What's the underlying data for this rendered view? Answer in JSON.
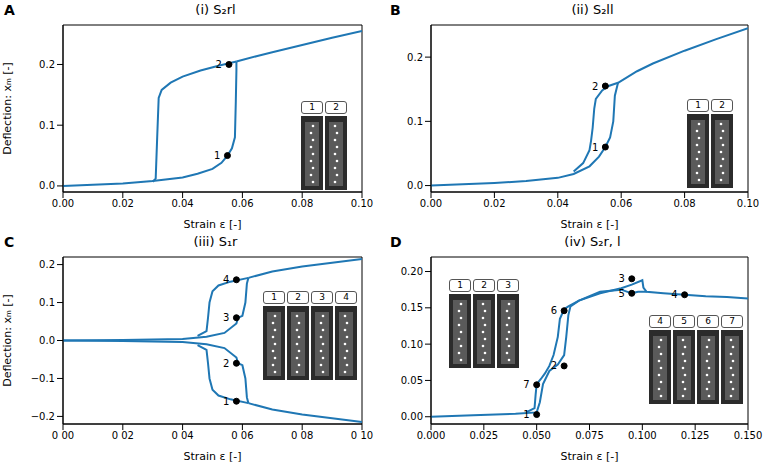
{
  "chart_data": [
    {
      "type": "line",
      "panel_label": "A",
      "title": "(i) S₂rl",
      "x_label": "Strain ε [-]",
      "y_label": "Deflection: xₘ [-]",
      "xlim": [
        0,
        0.1
      ],
      "xticks": [
        {
          "value": 0,
          "label": "0.00"
        },
        {
          "value": 0.02,
          "label": "0.02"
        },
        {
          "value": 0.04,
          "label": "0.04"
        },
        {
          "value": 0.06,
          "label": "0.06"
        },
        {
          "value": 0.08,
          "label": "0.08"
        },
        {
          "value": 0.1,
          "label": "0.10"
        }
      ],
      "ylim": [
        -0.01,
        0.265
      ],
      "yticks": [
        {
          "value": 0,
          "label": "0.0"
        },
        {
          "value": 0.1,
          "label": "0.1"
        },
        {
          "value": 0.2,
          "label": "0.2"
        }
      ],
      "series": [
        {
          "color": "#1f77b4",
          "x": [
            0,
            0.01,
            0.02,
            0.03,
            0.04,
            0.045,
            0.05,
            0.053,
            0.055,
            0.0565,
            0.0575,
            0.0578,
            0.058,
            0.058
          ],
          "values": [
            0,
            0.002,
            0.004,
            0.008,
            0.014,
            0.02,
            0.028,
            0.038,
            0.05,
            0.062,
            0.08,
            0.14,
            0.19,
            0.205
          ]
        },
        {
          "color": "#1f77b4",
          "x": [
            0.058,
            0.065,
            0.07,
            0.08,
            0.09,
            0.1
          ],
          "values": [
            0.205,
            0.214,
            0.22,
            0.232,
            0.244,
            0.255
          ]
        },
        {
          "color": "#1f77b4",
          "x": [
            0.058,
            0.052,
            0.046,
            0.04,
            0.036,
            0.033,
            0.032,
            0.0315,
            0.031,
            0.03
          ],
          "values": [
            0.205,
            0.198,
            0.19,
            0.18,
            0.17,
            0.158,
            0.145,
            0.08,
            0.012,
            0.007
          ]
        }
      ],
      "annotations": [
        {
          "x": 0.055,
          "y": 0.05,
          "label": "1"
        },
        {
          "x": 0.0555,
          "y": 0.2,
          "label": "2"
        }
      ],
      "inset_labels": [
        [
          "1",
          "2"
        ]
      ]
    },
    {
      "type": "line",
      "panel_label": "B",
      "title": "(ii) S₂ll",
      "x_label": "Strain ε [-]",
      "xlim": [
        0,
        0.1
      ],
      "xticks": [
        {
          "value": 0,
          "label": "0.00"
        },
        {
          "value": 0.02,
          "label": "0.02"
        },
        {
          "value": 0.04,
          "label": "0.04"
        },
        {
          "value": 0.06,
          "label": "0.06"
        },
        {
          "value": 0.08,
          "label": "0.08"
        },
        {
          "value": 0.1,
          "label": "0.10"
        }
      ],
      "ylim": [
        -0.01,
        0.25
      ],
      "yticks": [
        {
          "value": 0,
          "label": "0.0"
        },
        {
          "value": 0.1,
          "label": "0.1"
        },
        {
          "value": 0.2,
          "label": "0.2"
        }
      ],
      "series": [
        {
          "color": "#1f77b4",
          "x": [
            0,
            0.01,
            0.02,
            0.03,
            0.04,
            0.045,
            0.05,
            0.053,
            0.055,
            0.0565,
            0.0575,
            0.058,
            0.059
          ],
          "values": [
            0,
            0.002,
            0.004,
            0.007,
            0.012,
            0.018,
            0.03,
            0.045,
            0.06,
            0.075,
            0.1,
            0.14,
            0.16
          ]
        },
        {
          "color": "#1f77b4",
          "x": [
            0.059,
            0.065,
            0.07,
            0.08,
            0.09,
            0.1
          ],
          "values": [
            0.16,
            0.178,
            0.19,
            0.21,
            0.228,
            0.245
          ]
        },
        {
          "color": "#1f77b4",
          "x": [
            0.059,
            0.056,
            0.054,
            0.052,
            0.0515,
            0.051,
            0.0505,
            0.05,
            0.048,
            0.045
          ],
          "values": [
            0.16,
            0.155,
            0.148,
            0.135,
            0.12,
            0.09,
            0.07,
            0.055,
            0.035,
            0.022
          ]
        }
      ],
      "annotations": [
        {
          "x": 0.055,
          "y": 0.06,
          "label": "1"
        },
        {
          "x": 0.055,
          "y": 0.155,
          "label": "2"
        }
      ],
      "inset_labels": [
        [
          "1",
          "2"
        ]
      ]
    },
    {
      "type": "line",
      "panel_label": "C",
      "title": "(iii) S₁r",
      "x_label": "Strain ε [-]",
      "y_label": "Deflection: xₘ [-]",
      "xlim": [
        0,
        0.1
      ],
      "xticks": [
        {
          "value": 0,
          "label": "0 00"
        },
        {
          "value": 0.02,
          "label": "0 02"
        },
        {
          "value": 0.04,
          "label": "0 04"
        },
        {
          "value": 0.06,
          "label": "0 06"
        },
        {
          "value": 0.08,
          "label": "0 08"
        },
        {
          "value": 0.1,
          "label": "0 10"
        }
      ],
      "ylim": [
        -0.22,
        0.22
      ],
      "yticks": [
        {
          "value": -0.2,
          "label": "−0.2"
        },
        {
          "value": -0.1,
          "label": "−0.1"
        },
        {
          "value": 0,
          "label": "0.0"
        },
        {
          "value": 0.1,
          "label": "0.1"
        },
        {
          "value": 0.2,
          "label": "0.2"
        }
      ],
      "series": [
        {
          "color": "#1f77b4",
          "x": [
            0,
            0.02,
            0.04,
            0.048,
            0.054,
            0.058,
            0.0585,
            0.06,
            0.061,
            0.0615,
            0.062
          ],
          "values": [
            0,
            0.001,
            0.004,
            0.01,
            0.02,
            0.045,
            0.06,
            0.065,
            0.1,
            0.15,
            0.165
          ]
        },
        {
          "color": "#1f77b4",
          "x": [
            0.062,
            0.07,
            0.08,
            0.09,
            0.1
          ],
          "values": [
            0.165,
            0.182,
            0.195,
            0.205,
            0.215
          ]
        },
        {
          "color": "#1f77b4",
          "x": [
            0.062,
            0.056,
            0.052,
            0.05,
            0.049,
            0.0485,
            0.048,
            0.045
          ],
          "values": [
            0.165,
            0.155,
            0.145,
            0.13,
            0.1,
            0.06,
            0.025,
            0.012
          ]
        },
        {
          "color": "#1f77b4",
          "x": [
            0,
            0.02,
            0.04,
            0.048,
            0.054,
            0.058,
            0.0585,
            0.06,
            0.061,
            0.0615,
            0.062
          ],
          "values": [
            0,
            -0.001,
            -0.004,
            -0.01,
            -0.02,
            -0.045,
            -0.06,
            -0.065,
            -0.1,
            -0.15,
            -0.165
          ]
        },
        {
          "color": "#1f77b4",
          "x": [
            0.062,
            0.07,
            0.08,
            0.09,
            0.1
          ],
          "values": [
            -0.165,
            -0.182,
            -0.195,
            -0.205,
            -0.215
          ]
        },
        {
          "color": "#1f77b4",
          "x": [
            0.062,
            0.056,
            0.052,
            0.05,
            0.049,
            0.0485,
            0.048,
            0.045
          ],
          "values": [
            -0.165,
            -0.155,
            -0.145,
            -0.13,
            -0.1,
            -0.06,
            -0.025,
            -0.012
          ]
        }
      ],
      "annotations": [
        {
          "x": 0.058,
          "y": -0.16,
          "label": "1"
        },
        {
          "x": 0.058,
          "y": -0.06,
          "label": "2"
        },
        {
          "x": 0.058,
          "y": 0.06,
          "label": "3"
        },
        {
          "x": 0.058,
          "y": 0.16,
          "label": "4"
        }
      ],
      "inset_labels": [
        [
          "1",
          "2",
          "3",
          "4"
        ]
      ]
    },
    {
      "type": "line",
      "panel_label": "D",
      "title": "(iv) S₂r, l",
      "x_label": "Strain ε [-]",
      "xlim": [
        0,
        0.15
      ],
      "xticks": [
        {
          "value": 0,
          "label": "0.000"
        },
        {
          "value": 0.025,
          "label": "0.025"
        },
        {
          "value": 0.05,
          "label": "0.050"
        },
        {
          "value": 0.075,
          "label": "0.075"
        },
        {
          "value": 0.1,
          "label": "0.100"
        },
        {
          "value": 0.125,
          "label": "0.125"
        },
        {
          "value": 0.15,
          "label": "0.150"
        }
      ],
      "ylim": [
        -0.01,
        0.22
      ],
      "yticks": [
        {
          "value": 0,
          "label": "0.00"
        },
        {
          "value": 0.05,
          "label": "0.05"
        },
        {
          "value": 0.1,
          "label": "0.10"
        },
        {
          "value": 0.15,
          "label": "0.15"
        },
        {
          "value": 0.2,
          "label": "0.20"
        }
      ],
      "series": [
        {
          "color": "#1f77b4",
          "x": [
            0,
            0.02,
            0.04,
            0.05,
            0.0515,
            0.053,
            0.056,
            0.06,
            0.063,
            0.064,
            0.065,
            0.066,
            0.07,
            0.08,
            0.09,
            0.095,
            0.1,
            0.1005,
            0.102,
            0.11,
            0.12,
            0.13,
            0.14,
            0.15
          ],
          "values": [
            0,
            0.002,
            0.004,
            0.006,
            0.02,
            0.045,
            0.063,
            0.072,
            0.085,
            0.11,
            0.14,
            0.152,
            0.16,
            0.17,
            0.177,
            0.182,
            0.188,
            0.178,
            0.172,
            0.17,
            0.168,
            0.166,
            0.165,
            0.163
          ]
        },
        {
          "color": "#1f77b4",
          "x": [
            0.102,
            0.098,
            0.095,
            0.093,
            0.09,
            0.08,
            0.07,
            0.065,
            0.063,
            0.061,
            0.06,
            0.058,
            0.056,
            0.054,
            0.052,
            0.05,
            0.0495,
            0.049,
            0.045
          ],
          "values": [
            0.172,
            0.172,
            0.17,
            0.172,
            0.175,
            0.172,
            0.16,
            0.152,
            0.148,
            0.135,
            0.11,
            0.085,
            0.07,
            0.06,
            0.052,
            0.045,
            0.03,
            0.012,
            0.006
          ]
        }
      ],
      "annotations": [
        {
          "x": 0.05,
          "y": 0.003,
          "label": "1"
        },
        {
          "x": 0.063,
          "y": 0.07,
          "label": "2"
        },
        {
          "x": 0.095,
          "y": 0.19,
          "label": "3"
        },
        {
          "x": 0.12,
          "y": 0.168,
          "label": "4"
        },
        {
          "x": 0.095,
          "y": 0.17,
          "label": "5"
        },
        {
          "x": 0.063,
          "y": 0.146,
          "label": "6"
        },
        {
          "x": 0.05,
          "y": 0.044,
          "label": "7"
        }
      ],
      "inset_labels": [
        [
          "1",
          "2",
          "3"
        ],
        [
          "4",
          "5",
          "6",
          "7"
        ]
      ]
    }
  ]
}
